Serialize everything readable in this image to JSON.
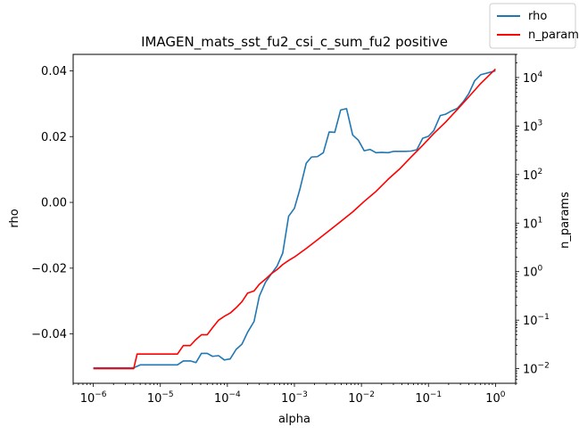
{
  "chart_data": {
    "type": "line",
    "title": "IMAGEN_mats_sst_fu2_csi_c_sum_fu2 positive",
    "xlabel": "alpha",
    "ylabel_left": "rho",
    "ylabel_right": "n_params",
    "xscale": "log",
    "xlim": [
      5e-07,
      2
    ],
    "ylim_left": [
      -0.055,
      0.045
    ],
    "ylim_right": [
      0.005,
      30000
    ],
    "yscale_right": "log",
    "grid": false,
    "legend_position": "top-right",
    "x_ticks": [
      {
        "value": 1e-06,
        "base": "10",
        "exp": "−6"
      },
      {
        "value": 1e-05,
        "base": "10",
        "exp": "−5"
      },
      {
        "value": 0.0001,
        "base": "10",
        "exp": "−4"
      },
      {
        "value": 0.001,
        "base": "10",
        "exp": "−3"
      },
      {
        "value": 0.01,
        "base": "10",
        "exp": "−2"
      },
      {
        "value": 0.1,
        "base": "10",
        "exp": "−1"
      },
      {
        "value": 1,
        "base": "10",
        "exp": "0"
      }
    ],
    "y_left_ticks": [
      {
        "value": 0.04,
        "label": "0.04"
      },
      {
        "value": 0.02,
        "label": "0.02"
      },
      {
        "value": 0.0,
        "label": "0.00"
      },
      {
        "value": -0.02,
        "label": "−0.02"
      },
      {
        "value": -0.04,
        "label": "−0.04"
      }
    ],
    "y_right_ticks": [
      {
        "value": 0.01,
        "base": "10",
        "exp": "−2"
      },
      {
        "value": 0.1,
        "base": "10",
        "exp": "−1"
      },
      {
        "value": 1,
        "base": "10",
        "exp": "0"
      },
      {
        "value": 10,
        "base": "10",
        "exp": "1"
      },
      {
        "value": 100,
        "base": "10",
        "exp": "2"
      },
      {
        "value": 1000,
        "base": "10",
        "exp": "3"
      },
      {
        "value": 10000,
        "base": "10",
        "exp": "4"
      }
    ],
    "series": [
      {
        "name": "rho",
        "axis": "left",
        "color": "#1f77b4",
        "points": [
          [
            1e-06,
            -0.0503
          ],
          [
            1.5e-06,
            -0.0503
          ],
          [
            2e-06,
            -0.0503
          ],
          [
            3e-06,
            -0.0503
          ],
          [
            4e-06,
            -0.0503
          ],
          [
            5e-06,
            -0.0494
          ],
          [
            7e-06,
            -0.0494
          ],
          [
            1e-05,
            -0.0494
          ],
          [
            1.5e-05,
            -0.0494
          ],
          [
            1.8e-05,
            -0.0494
          ],
          [
            2.2e-05,
            -0.0482
          ],
          [
            2.8e-05,
            -0.0482
          ],
          [
            3.4e-05,
            -0.0487
          ],
          [
            4.1e-05,
            -0.0459
          ],
          [
            5e-05,
            -0.0459
          ],
          [
            6e-05,
            -0.0468
          ],
          [
            7.4e-05,
            -0.0466
          ],
          [
            9e-05,
            -0.0479
          ],
          [
            0.00011,
            -0.0476
          ],
          [
            0.000135,
            -0.0447
          ],
          [
            0.000165,
            -0.0431
          ],
          [
            0.0002,
            -0.0395
          ],
          [
            0.00025,
            -0.0362
          ],
          [
            0.0003,
            -0.0285
          ],
          [
            0.00037,
            -0.0243
          ],
          [
            0.00045,
            -0.0218
          ],
          [
            0.00055,
            -0.0194
          ],
          [
            0.00067,
            -0.0154
          ],
          [
            0.00082,
            -0.0042
          ],
          [
            0.001,
            -0.0018
          ],
          [
            0.0012,
            0.0038
          ],
          [
            0.0015,
            0.0119
          ],
          [
            0.0018,
            0.0138
          ],
          [
            0.0022,
            0.0139
          ],
          [
            0.0027,
            0.0151
          ],
          [
            0.0033,
            0.0214
          ],
          [
            0.004,
            0.0213
          ],
          [
            0.0049,
            0.0281
          ],
          [
            0.006,
            0.0285
          ],
          [
            0.0074,
            0.0205
          ],
          [
            0.009,
            0.0189
          ],
          [
            0.011,
            0.0157
          ],
          [
            0.0135,
            0.0161
          ],
          [
            0.0165,
            0.0151
          ],
          [
            0.02,
            0.0152
          ],
          [
            0.025,
            0.0151
          ],
          [
            0.03,
            0.0155
          ],
          [
            0.037,
            0.0155
          ],
          [
            0.045,
            0.0155
          ],
          [
            0.055,
            0.0156
          ],
          [
            0.067,
            0.016
          ],
          [
            0.082,
            0.0195
          ],
          [
            0.1,
            0.0201
          ],
          [
            0.12,
            0.0218
          ],
          [
            0.15,
            0.0264
          ],
          [
            0.18,
            0.0268
          ],
          [
            0.22,
            0.0278
          ],
          [
            0.27,
            0.0286
          ],
          [
            0.33,
            0.0306
          ],
          [
            0.4,
            0.0331
          ],
          [
            0.49,
            0.037
          ],
          [
            0.6,
            0.0388
          ],
          [
            1.0,
            0.04
          ]
        ]
      },
      {
        "name": "n_params",
        "axis": "right",
        "color": "#ff0000",
        "points": [
          [
            1e-06,
            0.01
          ],
          [
            2e-06,
            0.01
          ],
          [
            3e-06,
            0.01
          ],
          [
            4e-06,
            0.01
          ],
          [
            4.5e-06,
            0.02
          ],
          [
            1e-05,
            0.02
          ],
          [
            1.8e-05,
            0.02
          ],
          [
            2.2e-05,
            0.03
          ],
          [
            2.8e-05,
            0.03
          ],
          [
            3.4e-05,
            0.04
          ],
          [
            4.1e-05,
            0.05
          ],
          [
            5e-05,
            0.05
          ],
          [
            6e-05,
            0.07
          ],
          [
            7.4e-05,
            0.1
          ],
          [
            9e-05,
            0.12
          ],
          [
            0.00011,
            0.14
          ],
          [
            0.000135,
            0.18
          ],
          [
            0.000165,
            0.24
          ],
          [
            0.0002,
            0.36
          ],
          [
            0.00025,
            0.4
          ],
          [
            0.0003,
            0.55
          ],
          [
            0.00037,
            0.7
          ],
          [
            0.00045,
            0.9
          ],
          [
            0.00055,
            1.1
          ],
          [
            0.00067,
            1.4
          ],
          [
            0.00082,
            1.7
          ],
          [
            0.001,
            2.0
          ],
          [
            0.0015,
            3.0
          ],
          [
            0.0022,
            4.5
          ],
          [
            0.0033,
            7
          ],
          [
            0.005,
            11
          ],
          [
            0.0074,
            17
          ],
          [
            0.011,
            28
          ],
          [
            0.0165,
            45
          ],
          [
            0.025,
            80
          ],
          [
            0.037,
            130
          ],
          [
            0.055,
            230
          ],
          [
            0.082,
            400
          ],
          [
            0.12,
            700
          ],
          [
            0.18,
            1200
          ],
          [
            0.27,
            2200
          ],
          [
            0.4,
            4000
          ],
          [
            0.6,
            7500
          ],
          [
            1.0,
            15000
          ]
        ]
      }
    ]
  }
}
